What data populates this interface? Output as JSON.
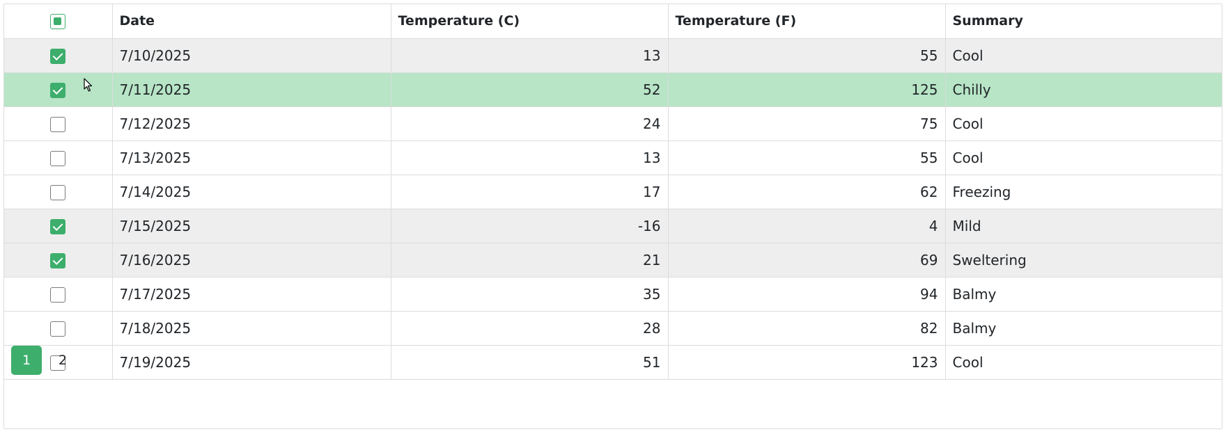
{
  "grid": {
    "columns": {
      "date": "Date",
      "temp_c": "Temperature (C)",
      "temp_f": "Temperature (F)",
      "summary": "Summary"
    },
    "select_all_state": "indeterminate",
    "hover_row_index": 1,
    "rows": [
      {
        "checked": true,
        "date": "7/10/2025",
        "temp_c": "13",
        "temp_f": "55",
        "summary": "Cool"
      },
      {
        "checked": true,
        "date": "7/11/2025",
        "temp_c": "52",
        "temp_f": "125",
        "summary": "Chilly"
      },
      {
        "checked": false,
        "date": "7/12/2025",
        "temp_c": "24",
        "temp_f": "75",
        "summary": "Cool"
      },
      {
        "checked": false,
        "date": "7/13/2025",
        "temp_c": "13",
        "temp_f": "55",
        "summary": "Cool"
      },
      {
        "checked": false,
        "date": "7/14/2025",
        "temp_c": "17",
        "temp_f": "62",
        "summary": "Freezing"
      },
      {
        "checked": true,
        "date": "7/15/2025",
        "temp_c": "-16",
        "temp_f": "4",
        "summary": "Mild"
      },
      {
        "checked": true,
        "date": "7/16/2025",
        "temp_c": "21",
        "temp_f": "69",
        "summary": "Sweltering"
      },
      {
        "checked": false,
        "date": "7/17/2025",
        "temp_c": "35",
        "temp_f": "94",
        "summary": "Balmy"
      },
      {
        "checked": false,
        "date": "7/18/2025",
        "temp_c": "28",
        "temp_f": "82",
        "summary": "Balmy"
      },
      {
        "checked": false,
        "date": "7/19/2025",
        "temp_c": "51",
        "temp_f": "123",
        "summary": "Cool"
      }
    ]
  },
  "pager": {
    "pages": [
      "1",
      "2"
    ],
    "current": "1"
  },
  "colors": {
    "accent": "#3dae6c",
    "selected_row": "#eeeeee",
    "hover_row": "#b7e5c6"
  }
}
